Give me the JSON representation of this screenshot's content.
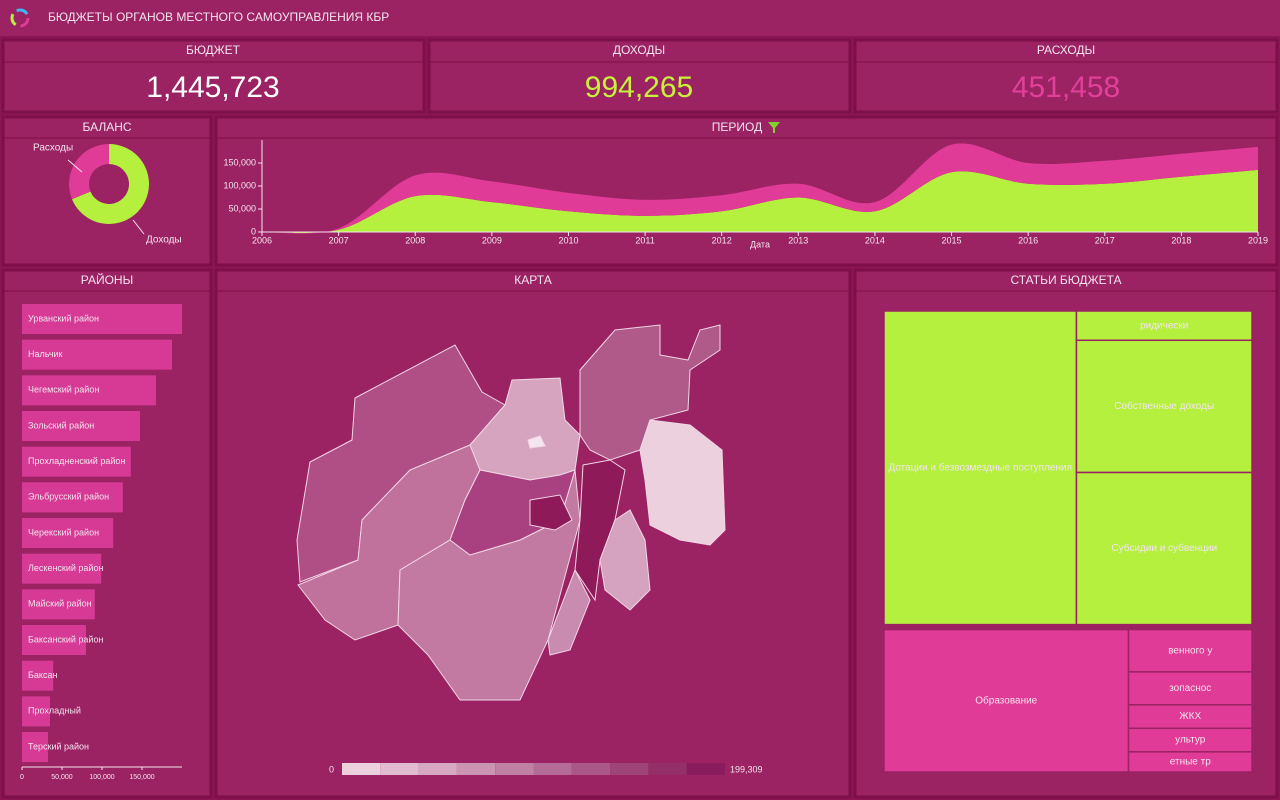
{
  "header": {
    "title": "БЮДЖЕТЫ ОРГАНОВ МЕСТНОГО САМОУПРАВЛЕНИЯ КБР"
  },
  "kpis": [
    {
      "label": "БЮДЖЕТ",
      "value": "1,445,723"
    },
    {
      "label": "ДОХОДЫ",
      "value": "994,265"
    },
    {
      "label": "РАСХОДЫ",
      "value": "451,458"
    }
  ],
  "map": {
    "title": "КАРТА",
    "legend": {
      "min": "0",
      "max": "199,309"
    }
  },
  "chart_data": [
    {
      "type": "pie",
      "title": "БАЛАНС",
      "categories": [
        "Расходы",
        "Доходы"
      ],
      "values": [
        451458,
        994265
      ],
      "colors": [
        "#e03b96",
        "#b5f03f"
      ]
    },
    {
      "type": "area",
      "title": "ПЕРИОД",
      "x_label": "Дата",
      "stacked": true,
      "x": [
        2006,
        2007,
        2008,
        2009,
        2010,
        2011,
        2012,
        2013,
        2014,
        2015,
        2016,
        2017,
        2018,
        2019
      ],
      "series": [
        {
          "name": "Доходы",
          "color": "#b5f03f",
          "values": [
            0,
            5000,
            78000,
            65000,
            45000,
            35000,
            45000,
            75000,
            45000,
            130000,
            105000,
            105000,
            120000,
            135000
          ]
        },
        {
          "name": "Расходы",
          "color": "#e03b96",
          "values": [
            0,
            3000,
            45000,
            45000,
            40000,
            35000,
            35000,
            30000,
            20000,
            60000,
            45000,
            50000,
            50000,
            50000
          ]
        }
      ],
      "xlim": [
        2006,
        2019
      ],
      "xticks": [
        2006,
        2007,
        2008,
        2009,
        2010,
        2011,
        2012,
        2013,
        2014,
        2015,
        2016,
        2017,
        2018,
        2019
      ],
      "ylim": [
        0,
        200000
      ],
      "yticks": [
        0,
        {
          "value": 50000,
          "label": "50,000"
        },
        {
          "value": 100000,
          "label": "100,000"
        },
        {
          "value": 150000,
          "label": "150,000"
        }
      ]
    },
    {
      "type": "bar",
      "orientation": "horizontal",
      "title": "РАЙОНЫ",
      "color": "#d63a95",
      "categories": [
        "Урванский район",
        "Нальчик",
        "Чегемский район",
        "Зольский район",
        "Прохладненский район",
        "Эльбрусский район",
        "Черекский район",
        "Лескенский район",
        "Майский район",
        "Баксанский район",
        "Баксан",
        "Прохладный",
        "Терский район"
      ],
      "values": [
        200000,
        187500,
        167500,
        147500,
        136000,
        126000,
        114000,
        99000,
        91000,
        80000,
        39000,
        35000,
        32500
      ],
      "xlim": [
        0,
        200000
      ],
      "xticks": [
        0,
        {
          "value": 50000,
          "label": "50,000"
        },
        {
          "value": 100000,
          "label": "100,000"
        },
        {
          "value": 150000,
          "label": "150,000"
        }
      ]
    },
    {
      "type": "treemap",
      "title": "СТАТЬИ БЮДЖЕТА",
      "series": [
        {
          "color": "#b5f03f",
          "items": [
            {
              "name": "Дотации и безвозмездные поступления",
              "value": 520000
            },
            {
              "name": "ридически",
              "value": 44265
            },
            {
              "name": "Собственные доходы",
              "value": 200000
            },
            {
              "name": "Субсидии и субвенции",
              "value": 230000
            }
          ]
        },
        {
          "color": "#e03b96",
          "items": [
            {
              "name": "Образование",
              "value": 300000
            },
            {
              "name": "венного у",
              "value": 45000
            },
            {
              "name": "зопаснос",
              "value": 35000
            },
            {
              "name": "ЖКХ",
              "value": 25000
            },
            {
              "name": "ультур",
              "value": 25000
            },
            {
              "name": "етные тр",
              "value": 21458
            }
          ]
        }
      ]
    }
  ]
}
